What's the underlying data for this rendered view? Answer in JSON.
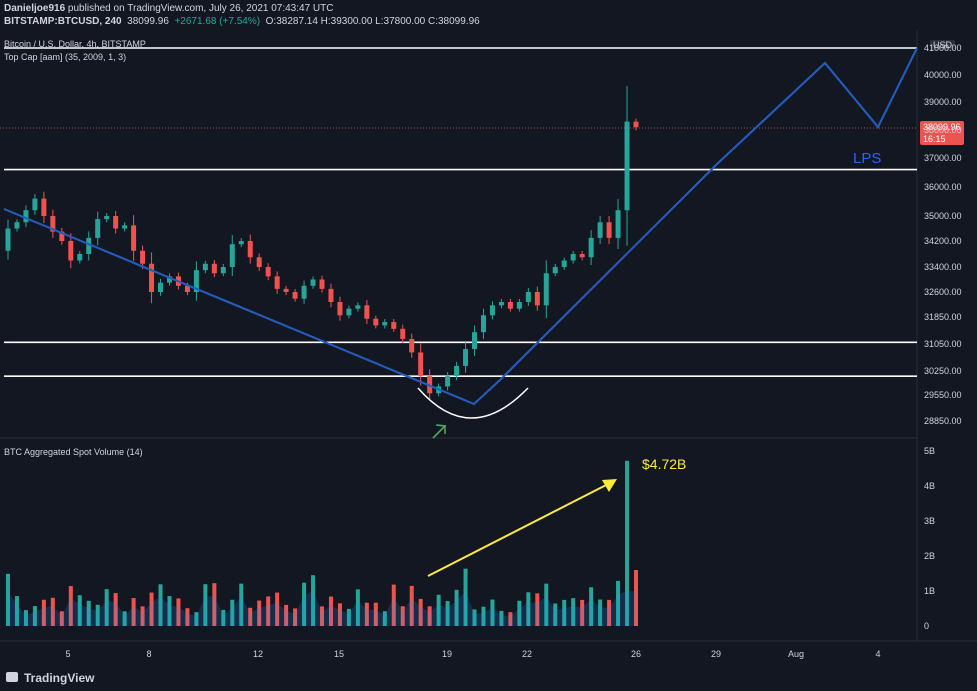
{
  "header": {
    "line1_user": "Danieljoe916",
    "line1_rest": " published on TradingView.com, July 26, 2021 07:43:47 UTC",
    "line2_symbol": "BITSTAMP:BTCUSD, 240",
    "line2_last": "38099.96",
    "line2_change": "+2671.68 (+7.54%)",
    "ohlc": "O:38287.14 H:39300.00 L:37800.00 C:38099.96"
  },
  "legend": {
    "title": "Bitcoin / U.S. Dollar, 4h, BITSTAMP",
    "indicator": "Top Cap [aam] (35, 2009, 1, 3)",
    "volume_title": "BTC Aggregated Spot Volume (14)"
  },
  "annotations": {
    "lps": "LPS",
    "volume_callout": "$4.72B"
  },
  "price_tag": {
    "value": "38099.96",
    "countdown": "16:15"
  },
  "currency": "USD",
  "footer": {
    "brand": "TradingView"
  },
  "colors": {
    "up": "#26a69a",
    "down": "#ef5350",
    "line": "#2962ff",
    "hline": "#ffffff",
    "arrow": "#ffeb3b"
  },
  "chart_data": [
    {
      "type": "candlestick",
      "title": "Bitcoin / U.S. Dollar, 4h, BITSTAMP",
      "ylabel": "USD",
      "ylim": [
        28600,
        41400
      ],
      "y_ticks": [
        41000,
        40000,
        39000,
        38000,
        37000,
        36000,
        35000,
        34200,
        33400,
        32600,
        31850,
        31050,
        30250,
        29550,
        28850
      ],
      "x_ticks": [
        "5",
        "8",
        "12",
        "15",
        "19",
        "22",
        "26",
        "29",
        "Aug",
        "4"
      ],
      "horizontal_levels": [
        41000,
        36600,
        31100,
        30100
      ],
      "candles": [
        [
          33900,
          34600
        ],
        [
          34600,
          34800
        ],
        [
          34800,
          35200
        ],
        [
          35200,
          35600
        ],
        [
          35600,
          35000
        ],
        [
          35000,
          34500
        ],
        [
          34500,
          34200
        ],
        [
          34200,
          33600
        ],
        [
          33600,
          33800
        ],
        [
          33800,
          34300
        ],
        [
          34300,
          34900
        ],
        [
          34900,
          35000
        ],
        [
          35000,
          34600
        ],
        [
          34600,
          34700
        ],
        [
          34700,
          33900
        ],
        [
          33900,
          33500
        ],
        [
          33500,
          32600
        ],
        [
          32600,
          32900
        ],
        [
          32900,
          33100
        ],
        [
          33100,
          32800
        ],
        [
          32800,
          32600
        ],
        [
          32600,
          33300
        ],
        [
          33300,
          33500
        ],
        [
          33500,
          33200
        ],
        [
          33200,
          33400
        ],
        [
          33400,
          34100
        ],
        [
          34100,
          34200
        ],
        [
          34200,
          33700
        ],
        [
          33700,
          33400
        ],
        [
          33400,
          33100
        ],
        [
          33100,
          32700
        ],
        [
          32700,
          32600
        ],
        [
          32600,
          32400
        ],
        [
          32400,
          32800
        ],
        [
          32800,
          33000
        ],
        [
          33000,
          32700
        ],
        [
          32700,
          32300
        ],
        [
          32300,
          31900
        ],
        [
          31900,
          32100
        ],
        [
          32100,
          32200
        ],
        [
          32200,
          31800
        ],
        [
          31800,
          31600
        ],
        [
          31600,
          31700
        ],
        [
          31700,
          31500
        ],
        [
          31500,
          31200
        ],
        [
          31200,
          30800
        ],
        [
          30800,
          30100
        ],
        [
          30100,
          29600
        ],
        [
          29600,
          29800
        ],
        [
          29800,
          30100
        ],
        [
          30100,
          30400
        ],
        [
          30400,
          30900
        ],
        [
          30900,
          31400
        ],
        [
          31400,
          31900
        ],
        [
          31900,
          32200
        ],
        [
          32200,
          32300
        ],
        [
          32300,
          32100
        ],
        [
          32100,
          32300
        ],
        [
          32300,
          32600
        ],
        [
          32600,
          32200
        ],
        [
          32200,
          33200
        ],
        [
          33200,
          33400
        ],
        [
          33400,
          33600
        ],
        [
          33600,
          33800
        ],
        [
          33800,
          33700
        ],
        [
          33700,
          34300
        ],
        [
          34300,
          34800
        ],
        [
          34800,
          34300
        ],
        [
          34300,
          35200
        ],
        [
          35200,
          38300
        ],
        [
          38300,
          38100
        ]
      ],
      "volume": {
        "title": "BTC Aggregated Spot Volume (14)",
        "unit": "B",
        "ylim": [
          0,
          5
        ],
        "y_ticks": [
          "5B",
          "4B",
          "3B",
          "2B",
          "1B",
          "0"
        ],
        "peak_value": 4.72
      },
      "trend_lines": [
        "descending",
        "ascending to LPS"
      ],
      "annotations": [
        "LPS",
        "$4.72B"
      ]
    }
  ]
}
